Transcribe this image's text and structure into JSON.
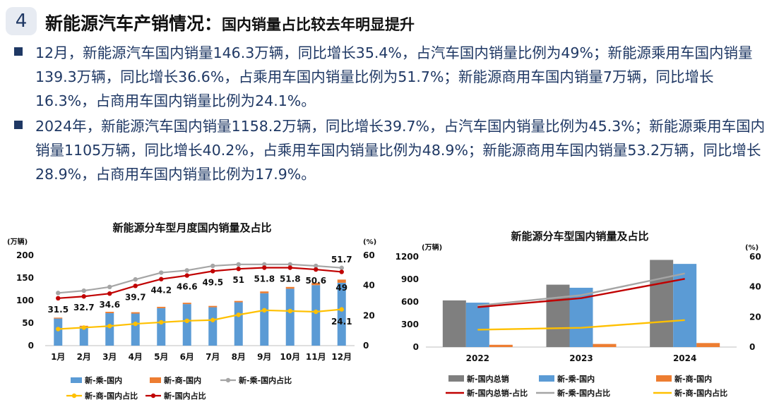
{
  "header": {
    "number": "4",
    "title": "新能源汽车产销情况：",
    "subtitle": "国内销量占比较去年明显提升"
  },
  "bullets": [
    {
      "text": "12月，新能源汽车国内销量146.3万辆，同比增长35.4%，占汽车国内销量比例为49%；新能源乘用车国内销量139.3万辆，同比增长36.6%，占乘用车国内销量比例为51.7%；新能源商用车国内销量7万辆，同比增长16.3%，占商用车国内销量比例为24.1%。"
    },
    {
      "text": "2024年，新能源汽车国内销量1158.2万辆，同比增长39.7%，占汽车国内销量比例为45.3%；新能源乘用车国内销量1105万辆，同比增长40.2%，占乘用车国内销量比例为48.9%；新能源商用车国内销量53.2万辆，同比增长28.9%，占商用车国内销量比例为17.9%。"
    }
  ],
  "colors": {
    "title_blue": "#1f3864",
    "bar_blue": "#5b9bd5",
    "bar_orange": "#ed7d31",
    "bar_gray": "#7f7f7f",
    "line_gray": "#a5a5a5",
    "line_red": "#c00000",
    "line_yellow": "#ffc000"
  },
  "chart_data": [
    {
      "type": "bar",
      "title": "新能源分车型月度国内销量及占比",
      "left_unit": "(万辆)",
      "right_unit": "(%)",
      "categories": [
        "1月",
        "2月",
        "3月",
        "4月",
        "5月",
        "6月",
        "7月",
        "8月",
        "9月",
        "10月",
        "11月",
        "12月"
      ],
      "y_ticks": [
        "0",
        "50",
        "100",
        "150",
        "200"
      ],
      "y2_ticks": [
        "0",
        "20",
        "40",
        "60"
      ],
      "ylim": [
        0,
        200
      ],
      "y2lim": [
        0,
        60
      ],
      "series": [
        {
          "name": "新-乘-国内",
          "kind": "bar",
          "axis": "left",
          "values": [
            60,
            42,
            72,
            71,
            83,
            92,
            85,
            96,
            116,
            126,
            134,
            139.3
          ]
        },
        {
          "name": "新-商-国内",
          "kind": "bar-stack",
          "axis": "left",
          "values": [
            2,
            2,
            3,
            3,
            3,
            3,
            3,
            3,
            4,
            4,
            5,
            7
          ]
        },
        {
          "name": "新-乘-国内占比",
          "kind": "line",
          "axis": "right",
          "values": [
            35,
            36.5,
            39,
            44,
            48.5,
            50,
            53,
            54,
            54,
            54,
            53,
            51.7
          ]
        },
        {
          "name": "新-商-国内占比",
          "kind": "line",
          "axis": "right",
          "values": [
            11,
            12,
            13,
            14.5,
            15.5,
            16.5,
            17,
            20.5,
            23.5,
            23,
            22.5,
            24.1
          ]
        },
        {
          "name": "新-国内占比",
          "kind": "line",
          "axis": "right",
          "values": [
            31.5,
            32.7,
            34.6,
            39.7,
            44.2,
            46.6,
            49.5,
            51,
            51.8,
            51.8,
            50.6,
            49
          ]
        }
      ],
      "data_labels": [
        "31.5",
        "32.7",
        "34.6",
        "39.7",
        "44.2",
        "46.6",
        "49.5",
        "51",
        "51.8",
        "51.8",
        "50.6",
        "49"
      ],
      "extra_labels": {
        "top_last": "51.7",
        "bottom_last": "24.1"
      },
      "legend": [
        {
          "name": "新-乘-国内",
          "marker": "bar"
        },
        {
          "name": "新-商-国内",
          "marker": "bar"
        },
        {
          "name": "新-乘-国内占比",
          "marker": "line"
        },
        {
          "name": "新-商-国内占比",
          "marker": "line"
        },
        {
          "name": "新-国内占比",
          "marker": "line"
        }
      ]
    },
    {
      "type": "bar",
      "title": "新能源分车型国内销量及占比",
      "left_unit": "(万辆)",
      "right_unit": "(%)",
      "categories": [
        "2022",
        "2023",
        "2024"
      ],
      "y_ticks": [
        "0",
        "300",
        "600",
        "900",
        "1200"
      ],
      "y2_ticks": [
        "0",
        "20",
        "40",
        "60"
      ],
      "ylim": [
        0,
        1200
      ],
      "y2lim": [
        0,
        60
      ],
      "series": [
        {
          "name": "新-国内总销",
          "kind": "bar",
          "axis": "left",
          "values": [
            620,
            829,
            1158.2
          ]
        },
        {
          "name": "新-乘-国内",
          "kind": "bar",
          "axis": "left",
          "values": [
            590,
            788,
            1105
          ]
        },
        {
          "name": "新-商-国内",
          "kind": "bar",
          "axis": "left",
          "values": [
            30,
            41,
            53.2
          ]
        },
        {
          "name": "新-国内总销-占比",
          "kind": "line",
          "axis": "right",
          "values": [
            26.5,
            32.5,
            45.3
          ]
        },
        {
          "name": "新-乘-国内占比",
          "kind": "line",
          "axis": "right",
          "values": [
            27.5,
            34.5,
            48.9
          ]
        },
        {
          "name": "新-商-国内占比",
          "kind": "line",
          "axis": "right",
          "values": [
            11.5,
            12.8,
            17.9
          ]
        }
      ],
      "legend": [
        {
          "name": "新-国内总销",
          "marker": "bar"
        },
        {
          "name": "新-乘-国内",
          "marker": "bar"
        },
        {
          "name": "新-商-国内",
          "marker": "bar"
        },
        {
          "name": "新-国内总销-占比",
          "marker": "line"
        },
        {
          "name": "新-乘-国内占比",
          "marker": "line"
        },
        {
          "name": "新-商-国内占比",
          "marker": "line"
        }
      ]
    }
  ]
}
